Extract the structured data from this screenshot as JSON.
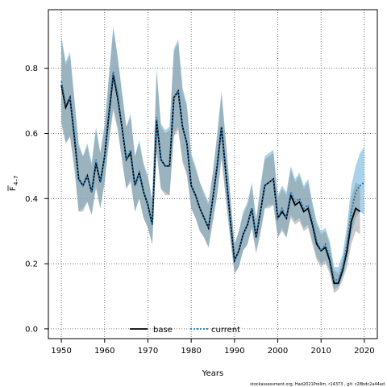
{
  "chart_data": {
    "type": "line",
    "title": "",
    "xlabel": "Years",
    "ylabel_main": "F",
    "ylabel_sub": "4–7",
    "xlim": [
      1947,
      2023
    ],
    "ylim": [
      -0.03,
      0.98
    ],
    "xticks": [
      "1950",
      "1960",
      "1970",
      "1980",
      "1990",
      "2000",
      "2010",
      "2020"
    ],
    "yticks": [
      "0.0",
      "0.2",
      "0.4",
      "0.6",
      "0.8"
    ],
    "grid": true,
    "legend_position": "bottom-center",
    "legend": {
      "base": "base",
      "current": "current"
    },
    "footnote": "stockassessment.org, Had2021Prelim, r14373 , git: c28bdc2a44ad",
    "colors": {
      "band_current": "#8bc4e3",
      "band_base": "#8c8c8c",
      "overlap": "#a1bed0",
      "line": "#000000",
      "current_dots": "#1f77b4"
    },
    "series": [
      {
        "name": "current",
        "years": [
          1950,
          1951,
          1952,
          1953,
          1954,
          1955,
          1956,
          1957,
          1958,
          1959,
          1960,
          1961,
          1962,
          1963,
          1964,
          1965,
          1966,
          1967,
          1968,
          1969,
          1970,
          1971,
          1972,
          1973,
          1974,
          1975,
          1976,
          1977,
          1978,
          1979,
          1980,
          1981,
          1982,
          1983,
          1984,
          1985,
          1986,
          1987,
          1988,
          1989,
          1990,
          1991,
          1992,
          1993,
          1994,
          1995,
          1996,
          1997,
          1998,
          1999,
          2000,
          2001,
          2002,
          2003,
          2004,
          2005,
          2006,
          2007,
          2008,
          2009,
          2010,
          2011,
          2012,
          2013,
          2014,
          2015,
          2016,
          2017,
          2018,
          2019,
          2020
        ],
        "values": [
          0.76,
          0.69,
          0.71,
          0.6,
          0.46,
          0.44,
          0.47,
          0.42,
          0.52,
          0.45,
          0.53,
          0.67,
          0.79,
          0.72,
          0.62,
          0.52,
          0.55,
          0.44,
          0.48,
          0.42,
          0.38,
          0.32,
          0.65,
          0.52,
          0.5,
          0.5,
          0.71,
          0.73,
          0.62,
          0.57,
          0.44,
          0.41,
          0.37,
          0.34,
          0.31,
          0.4,
          0.5,
          0.62,
          0.48,
          0.34,
          0.21,
          0.24,
          0.29,
          0.32,
          0.37,
          0.28,
          0.36,
          0.44,
          0.45,
          0.46,
          0.34,
          0.37,
          0.34,
          0.42,
          0.39,
          0.4,
          0.37,
          0.38,
          0.33,
          0.27,
          0.24,
          0.26,
          0.22,
          0.15,
          0.15,
          0.19,
          0.26,
          0.36,
          0.42,
          0.44,
          0.45
        ],
        "lower": [
          0.64,
          0.57,
          0.59,
          0.5,
          0.36,
          0.37,
          0.39,
          0.35,
          0.44,
          0.37,
          0.45,
          0.58,
          0.68,
          0.62,
          0.52,
          0.43,
          0.46,
          0.36,
          0.4,
          0.34,
          0.31,
          0.26,
          0.55,
          0.43,
          0.42,
          0.41,
          0.6,
          0.62,
          0.52,
          0.48,
          0.37,
          0.34,
          0.3,
          0.28,
          0.25,
          0.33,
          0.41,
          0.53,
          0.4,
          0.28,
          0.17,
          0.19,
          0.24,
          0.26,
          0.31,
          0.24,
          0.3,
          0.37,
          0.38,
          0.38,
          0.28,
          0.31,
          0.28,
          0.35,
          0.33,
          0.34,
          0.31,
          0.32,
          0.27,
          0.22,
          0.2,
          0.21,
          0.18,
          0.12,
          0.13,
          0.16,
          0.21,
          0.29,
          0.34,
          0.36,
          0.35
        ],
        "upper": [
          0.9,
          0.82,
          0.85,
          0.71,
          0.57,
          0.53,
          0.57,
          0.51,
          0.62,
          0.54,
          0.63,
          0.78,
          0.93,
          0.84,
          0.73,
          0.62,
          0.66,
          0.53,
          0.58,
          0.51,
          0.47,
          0.4,
          0.8,
          0.63,
          0.61,
          0.62,
          0.86,
          0.89,
          0.74,
          0.69,
          0.54,
          0.5,
          0.45,
          0.42,
          0.39,
          0.48,
          0.6,
          0.73,
          0.58,
          0.42,
          0.26,
          0.3,
          0.36,
          0.39,
          0.45,
          0.34,
          0.44,
          0.53,
          0.54,
          0.55,
          0.41,
          0.44,
          0.42,
          0.5,
          0.46,
          0.48,
          0.44,
          0.46,
          0.39,
          0.33,
          0.3,
          0.31,
          0.27,
          0.19,
          0.19,
          0.23,
          0.32,
          0.44,
          0.5,
          0.54,
          0.56
        ]
      },
      {
        "name": "base",
        "years": [
          1950,
          1951,
          1952,
          1953,
          1954,
          1955,
          1956,
          1957,
          1958,
          1959,
          1960,
          1961,
          1962,
          1963,
          1964,
          1965,
          1966,
          1967,
          1968,
          1969,
          1970,
          1971,
          1972,
          1973,
          1974,
          1975,
          1976,
          1977,
          1978,
          1979,
          1980,
          1981,
          1982,
          1983,
          1984,
          1985,
          1986,
          1987,
          1988,
          1989,
          1990,
          1991,
          1992,
          1993,
          1994,
          1995,
          1996,
          1997,
          1998,
          1999,
          2000,
          2001,
          2002,
          2003,
          2004,
          2005,
          2006,
          2007,
          2008,
          2009,
          2010,
          2011,
          2012,
          2013,
          2014,
          2015,
          2016,
          2017,
          2018,
          2019
        ],
        "values": [
          0.75,
          0.68,
          0.71,
          0.59,
          0.46,
          0.44,
          0.47,
          0.42,
          0.51,
          0.45,
          0.53,
          0.66,
          0.78,
          0.71,
          0.62,
          0.52,
          0.54,
          0.44,
          0.48,
          0.42,
          0.38,
          0.32,
          0.64,
          0.52,
          0.5,
          0.5,
          0.71,
          0.73,
          0.62,
          0.57,
          0.44,
          0.41,
          0.37,
          0.34,
          0.31,
          0.4,
          0.5,
          0.62,
          0.48,
          0.34,
          0.21,
          0.24,
          0.29,
          0.32,
          0.37,
          0.28,
          0.36,
          0.44,
          0.45,
          0.46,
          0.34,
          0.36,
          0.34,
          0.41,
          0.38,
          0.39,
          0.36,
          0.37,
          0.32,
          0.26,
          0.24,
          0.25,
          0.21,
          0.14,
          0.14,
          0.18,
          0.24,
          0.33,
          0.37,
          0.36
        ],
        "lower": [
          0.63,
          0.57,
          0.59,
          0.49,
          0.36,
          0.36,
          0.39,
          0.35,
          0.43,
          0.37,
          0.45,
          0.57,
          0.67,
          0.61,
          0.52,
          0.43,
          0.45,
          0.36,
          0.4,
          0.34,
          0.31,
          0.26,
          0.54,
          0.43,
          0.41,
          0.41,
          0.59,
          0.61,
          0.51,
          0.47,
          0.37,
          0.34,
          0.3,
          0.28,
          0.25,
          0.33,
          0.41,
          0.52,
          0.4,
          0.28,
          0.17,
          0.19,
          0.24,
          0.26,
          0.31,
          0.23,
          0.29,
          0.37,
          0.37,
          0.38,
          0.28,
          0.3,
          0.28,
          0.34,
          0.32,
          0.33,
          0.3,
          0.31,
          0.26,
          0.21,
          0.19,
          0.2,
          0.17,
          0.11,
          0.12,
          0.15,
          0.19,
          0.26,
          0.3,
          0.29
        ],
        "upper": [
          0.89,
          0.81,
          0.84,
          0.7,
          0.56,
          0.53,
          0.56,
          0.5,
          0.61,
          0.54,
          0.62,
          0.77,
          0.92,
          0.83,
          0.72,
          0.62,
          0.65,
          0.53,
          0.57,
          0.5,
          0.46,
          0.39,
          0.79,
          0.62,
          0.6,
          0.61,
          0.85,
          0.88,
          0.73,
          0.68,
          0.53,
          0.49,
          0.45,
          0.41,
          0.38,
          0.48,
          0.59,
          0.72,
          0.57,
          0.41,
          0.26,
          0.3,
          0.35,
          0.38,
          0.44,
          0.33,
          0.43,
          0.52,
          0.53,
          0.54,
          0.4,
          0.43,
          0.41,
          0.49,
          0.45,
          0.47,
          0.43,
          0.45,
          0.38,
          0.32,
          0.29,
          0.3,
          0.26,
          0.18,
          0.17,
          0.21,
          0.29,
          0.4,
          0.45,
          0.44
        ]
      }
    ]
  }
}
